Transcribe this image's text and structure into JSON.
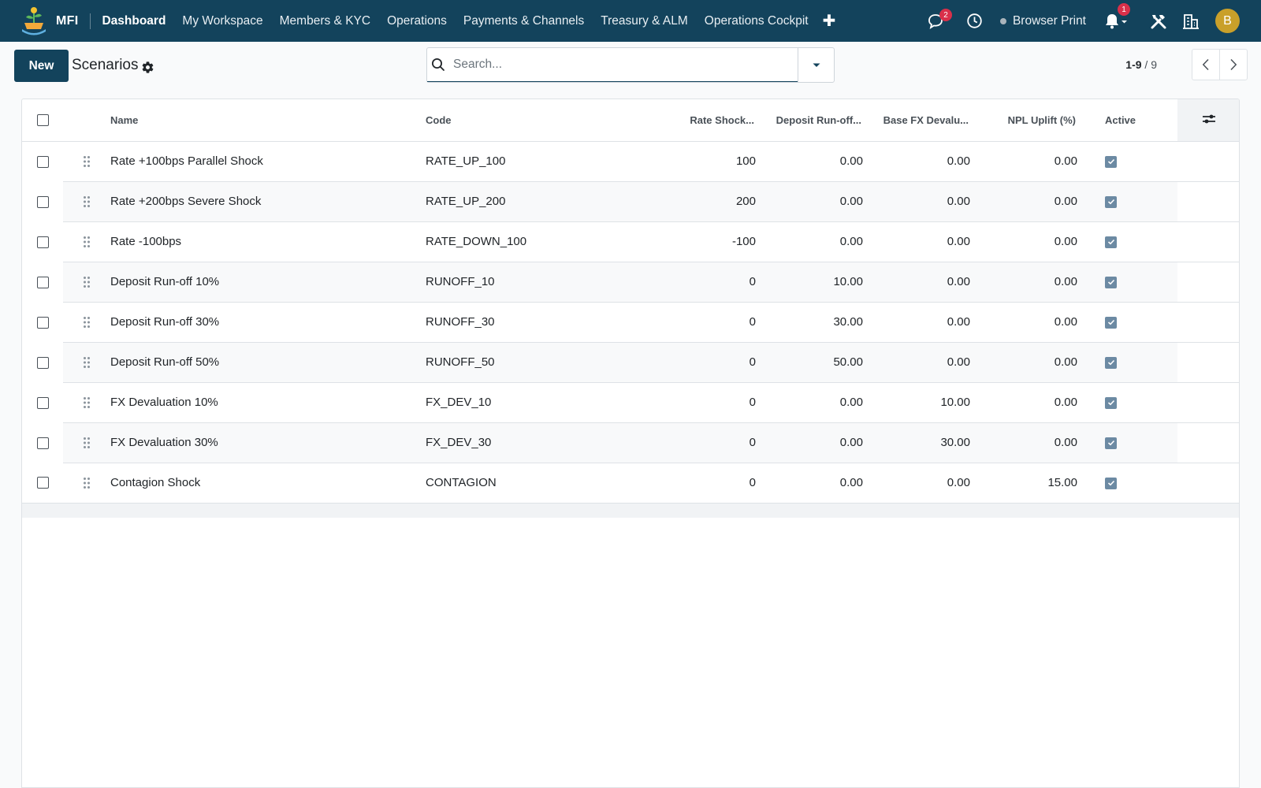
{
  "app": {
    "brand": "MFI",
    "menu": [
      "Dashboard",
      "My Workspace",
      "Members & KYC",
      "Operations",
      "Payments & Channels",
      "Treasury & ALM",
      "Operations Cockpit"
    ],
    "messages_count": "2",
    "notifications_count": "1",
    "browser_print": "Browser Print",
    "avatar_initial": "B",
    "colors": {
      "navbar": "#13435c",
      "badge": "#d9304a",
      "avatar": "#c9a02a"
    }
  },
  "control": {
    "new_label": "New",
    "title": "Scenarios",
    "search_placeholder": "Search...",
    "pager_range": "1-9",
    "pager_total": "9"
  },
  "table": {
    "columns": [
      "Name",
      "Code",
      "Rate Shock...",
      "Deposit Run-off...",
      "Base FX Devalu...",
      "NPL Uplift (%)",
      "Active"
    ],
    "rows": [
      {
        "name": "Rate +100bps Parallel Shock",
        "code": "RATE_UP_100",
        "rate": "100",
        "deposit": "0.00",
        "fx": "0.00",
        "npl": "0.00",
        "active": true
      },
      {
        "name": "Rate +200bps Severe Shock",
        "code": "RATE_UP_200",
        "rate": "200",
        "deposit": "0.00",
        "fx": "0.00",
        "npl": "0.00",
        "active": true
      },
      {
        "name": "Rate -100bps",
        "code": "RATE_DOWN_100",
        "rate": "-100",
        "deposit": "0.00",
        "fx": "0.00",
        "npl": "0.00",
        "active": true
      },
      {
        "name": "Deposit Run-off 10%",
        "code": "RUNOFF_10",
        "rate": "0",
        "deposit": "10.00",
        "fx": "0.00",
        "npl": "0.00",
        "active": true
      },
      {
        "name": "Deposit Run-off 30%",
        "code": "RUNOFF_30",
        "rate": "0",
        "deposit": "30.00",
        "fx": "0.00",
        "npl": "0.00",
        "active": true
      },
      {
        "name": "Deposit Run-off 50%",
        "code": "RUNOFF_50",
        "rate": "0",
        "deposit": "50.00",
        "fx": "0.00",
        "npl": "0.00",
        "active": true
      },
      {
        "name": "FX Devaluation 10%",
        "code": "FX_DEV_10",
        "rate": "0",
        "deposit": "0.00",
        "fx": "10.00",
        "npl": "0.00",
        "active": true
      },
      {
        "name": "FX Devaluation 30%",
        "code": "FX_DEV_30",
        "rate": "0",
        "deposit": "0.00",
        "fx": "30.00",
        "npl": "0.00",
        "active": true
      },
      {
        "name": "Contagion Shock",
        "code": "CONTAGION",
        "rate": "0",
        "deposit": "0.00",
        "fx": "0.00",
        "npl": "15.00",
        "active": true
      }
    ]
  }
}
